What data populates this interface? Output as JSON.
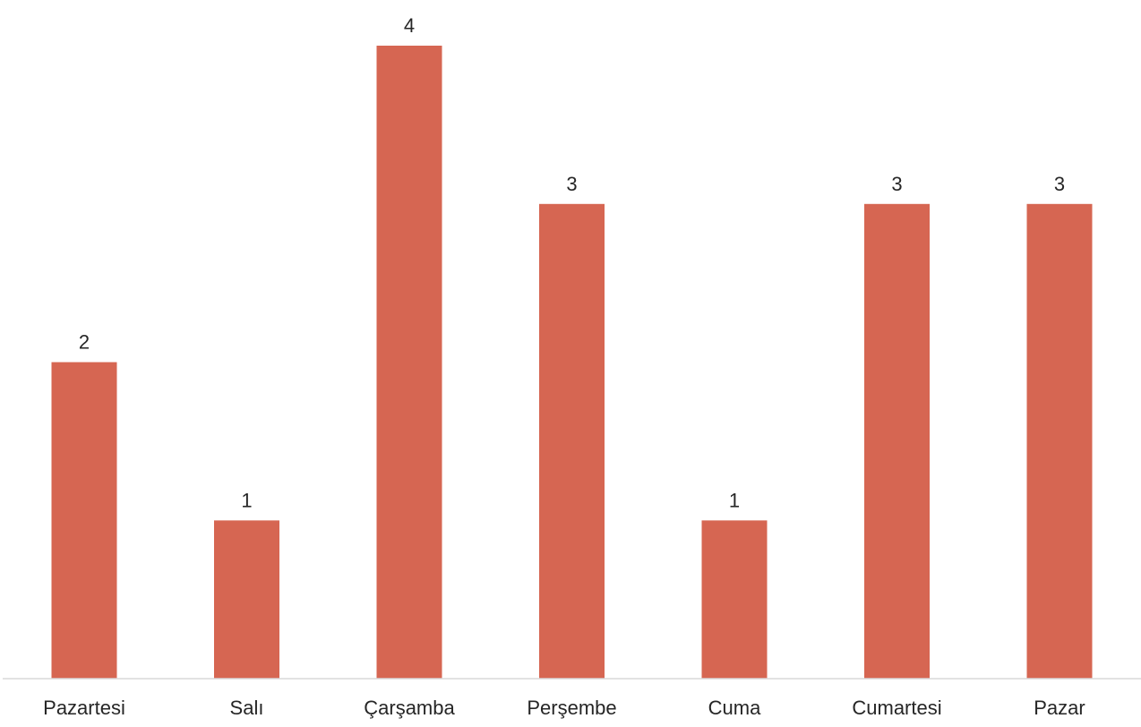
{
  "chart_data": {
    "type": "bar",
    "categories": [
      "Pazartesi",
      "Salı",
      "Çarşamba",
      "Perşembe",
      "Cuma",
      "Cumartesi",
      "Pazar"
    ],
    "values": [
      2,
      1,
      4,
      3,
      1,
      3,
      3
    ],
    "ylim": [
      0,
      4
    ],
    "grid": false,
    "legend": "none",
    "data_labels": true,
    "colors": {
      "bar": "#d66652",
      "axis": "#d9d9d9",
      "text": "#262626"
    }
  }
}
